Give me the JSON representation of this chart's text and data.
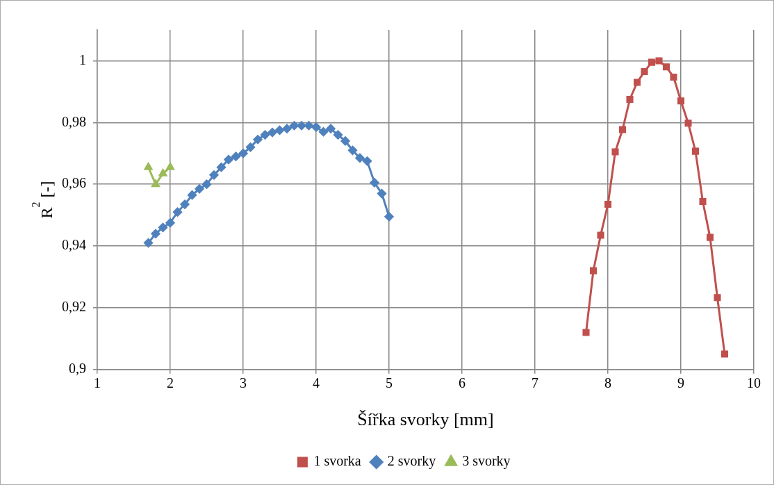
{
  "chart_data": {
    "type": "line",
    "xlabel": "Šířka svorky [mm]",
    "ylabel": "R$^{2}$ [-]",
    "xlim": [
      1,
      10
    ],
    "xticks": [
      1,
      2,
      3,
      4,
      5,
      6,
      7,
      8,
      9,
      10
    ],
    "ylim": [
      0.9,
      1.01
    ],
    "yticks": [
      {
        "value": 0.9,
        "label": "0,9"
      },
      {
        "value": 0.92,
        "label": "0,92"
      },
      {
        "value": 0.94,
        "label": "0,94"
      },
      {
        "value": 0.96,
        "label": "0,96"
      },
      {
        "value": 0.98,
        "label": "0,98"
      },
      {
        "value": 1,
        "label": "1"
      }
    ],
    "grid": true,
    "legend": "bottom",
    "line_style": "solid",
    "series": [
      {
        "name": "1 svorka",
        "color": "#c0504d",
        "marker": "square",
        "x": [
          7.7,
          7.8,
          7.9,
          8.0,
          8.1,
          8.2,
          8.3,
          8.4,
          8.5,
          8.6,
          8.7,
          8.8,
          8.9,
          9.0,
          9.1,
          9.2,
          9.3,
          9.4,
          9.5,
          9.6
        ],
        "values": [
          0.912,
          0.932,
          0.9435,
          0.9535,
          0.9705,
          0.9777,
          0.9875,
          0.993,
          0.9965,
          0.9995,
          1.0,
          0.998,
          0.9947,
          0.987,
          0.9798,
          0.9707,
          0.9544,
          0.9428,
          0.9233,
          0.905
        ]
      },
      {
        "name": "2 svorky",
        "color": "#4f81bd",
        "marker": "diamond",
        "x": [
          1.7,
          1.8,
          1.9,
          2.0,
          2.1,
          2.2,
          2.3,
          2.4,
          2.5,
          2.6,
          2.7,
          2.8,
          2.9,
          3.0,
          3.1,
          3.2,
          3.3,
          3.4,
          3.5,
          3.6,
          3.7,
          3.8,
          3.9,
          4.0,
          4.1,
          4.2,
          4.3,
          4.4,
          4.5,
          4.6,
          4.7,
          4.8,
          4.9,
          5.0
        ],
        "values": [
          0.941,
          0.944,
          0.946,
          0.9475,
          0.951,
          0.9535,
          0.9565,
          0.9585,
          0.96,
          0.963,
          0.9655,
          0.968,
          0.969,
          0.97,
          0.972,
          0.9745,
          0.976,
          0.9768,
          0.9775,
          0.978,
          0.979,
          0.979,
          0.979,
          0.9785,
          0.977,
          0.978,
          0.976,
          0.974,
          0.971,
          0.9685,
          0.9675,
          0.9605,
          0.957,
          0.9495
        ]
      },
      {
        "name": "3 svorky",
        "color": "#9bbb59",
        "marker": "triangle",
        "x": [
          1.7,
          1.8,
          1.9,
          2.0
        ],
        "values": [
          0.9655,
          0.96,
          0.9635,
          0.9655
        ]
      }
    ]
  }
}
